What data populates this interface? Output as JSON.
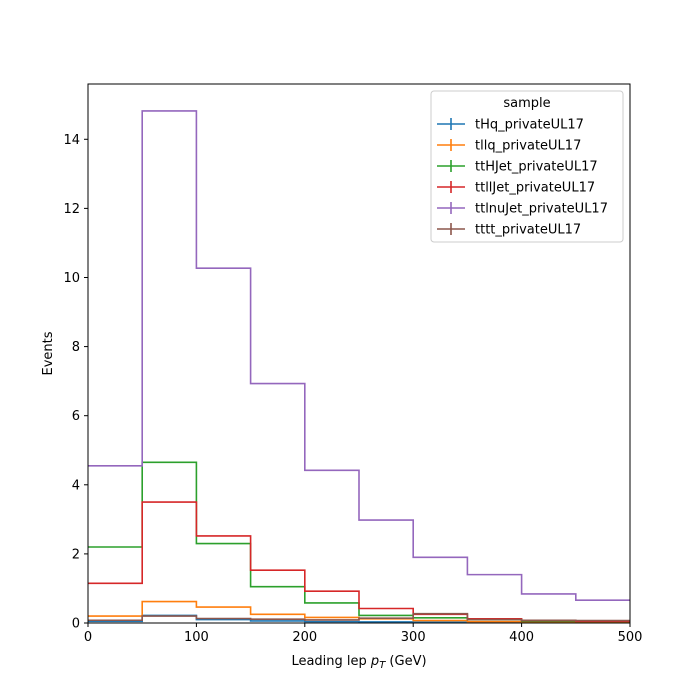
{
  "chart_data": {
    "type": "line",
    "style": "step-histogram",
    "xlabel_main": "Leading lep ",
    "xlabel_var": "p",
    "xlabel_sub": "T",
    "xlabel_unit": " (GeV)",
    "ylabel": "Events",
    "xlim": [
      0,
      500
    ],
    "ylim": [
      0,
      15.6
    ],
    "xticks": [
      "0",
      "100",
      "200",
      "300",
      "400",
      "500"
    ],
    "yticks": [
      "0",
      "2",
      "4",
      "6",
      "8",
      "10",
      "12",
      "14"
    ],
    "grid": false,
    "legend": {
      "title": "sample",
      "placement": "top-right"
    },
    "bin_edges": [
      0,
      50,
      100,
      150,
      200,
      250,
      300,
      350,
      400,
      450,
      500
    ],
    "series": [
      {
        "name": "tHq_privateUL17",
        "color": "#1f77b4",
        "values": [
          0.05,
          0.22,
          0.1,
          0.06,
          0.04,
          0.03,
          0.02,
          0.02,
          0.01,
          0.01
        ]
      },
      {
        "name": "tllq_privateUL17",
        "color": "#ff7f0e",
        "values": [
          0.2,
          0.62,
          0.46,
          0.25,
          0.16,
          0.12,
          0.07,
          0.04,
          0.03,
          0.02
        ]
      },
      {
        "name": "ttHJet_privateUL17",
        "color": "#2ca02c",
        "values": [
          2.2,
          4.65,
          2.3,
          1.05,
          0.58,
          0.22,
          0.15,
          0.1,
          0.05,
          0.05
        ]
      },
      {
        "name": "ttllJet_privateUL17",
        "color": "#d62728",
        "values": [
          1.15,
          3.5,
          2.52,
          1.53,
          0.92,
          0.42,
          0.25,
          0.12,
          0.07,
          0.05
        ]
      },
      {
        "name": "ttlnuJet_privateUL17",
        "color": "#9467bd",
        "values": [
          4.55,
          14.82,
          10.27,
          6.93,
          4.42,
          2.98,
          1.9,
          1.4,
          0.84,
          0.66
        ]
      },
      {
        "name": "tttt_privateUL17",
        "color": "#8c564b",
        "values": [
          0.08,
          0.2,
          0.13,
          0.11,
          0.09,
          0.14,
          0.27,
          0.1,
          0.08,
          0.07
        ]
      }
    ]
  }
}
